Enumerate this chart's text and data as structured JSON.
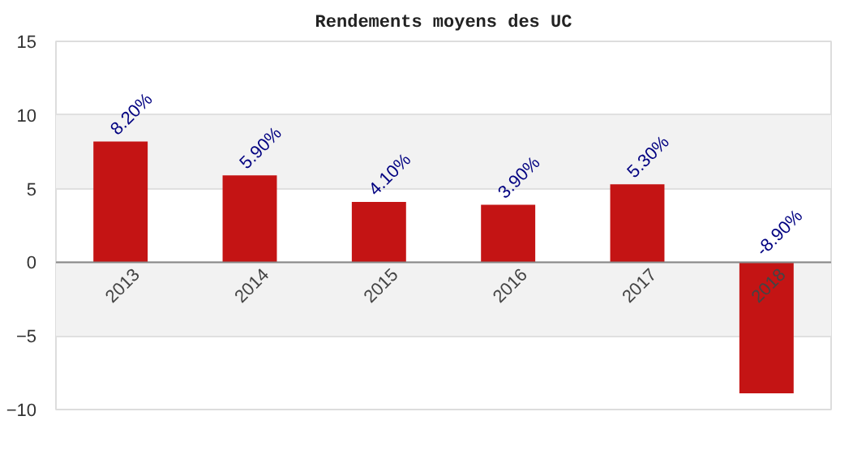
{
  "chart_data": {
    "type": "bar",
    "title": "Rendements moyens des UC",
    "categories": [
      "2013",
      "2014",
      "2015",
      "2016",
      "2017",
      "2018"
    ],
    "values": [
      8.2,
      5.9,
      4.1,
      3.9,
      5.3,
      -8.9
    ],
    "value_labels": [
      "8.20%",
      "5.90%",
      "4.10%",
      "3.90%",
      "5.30%",
      "-8.90%"
    ],
    "color": "#c41414",
    "ylim": [
      -10,
      15
    ],
    "yticks": [
      -10,
      -5,
      0,
      5,
      10,
      15
    ],
    "grid": "y"
  }
}
